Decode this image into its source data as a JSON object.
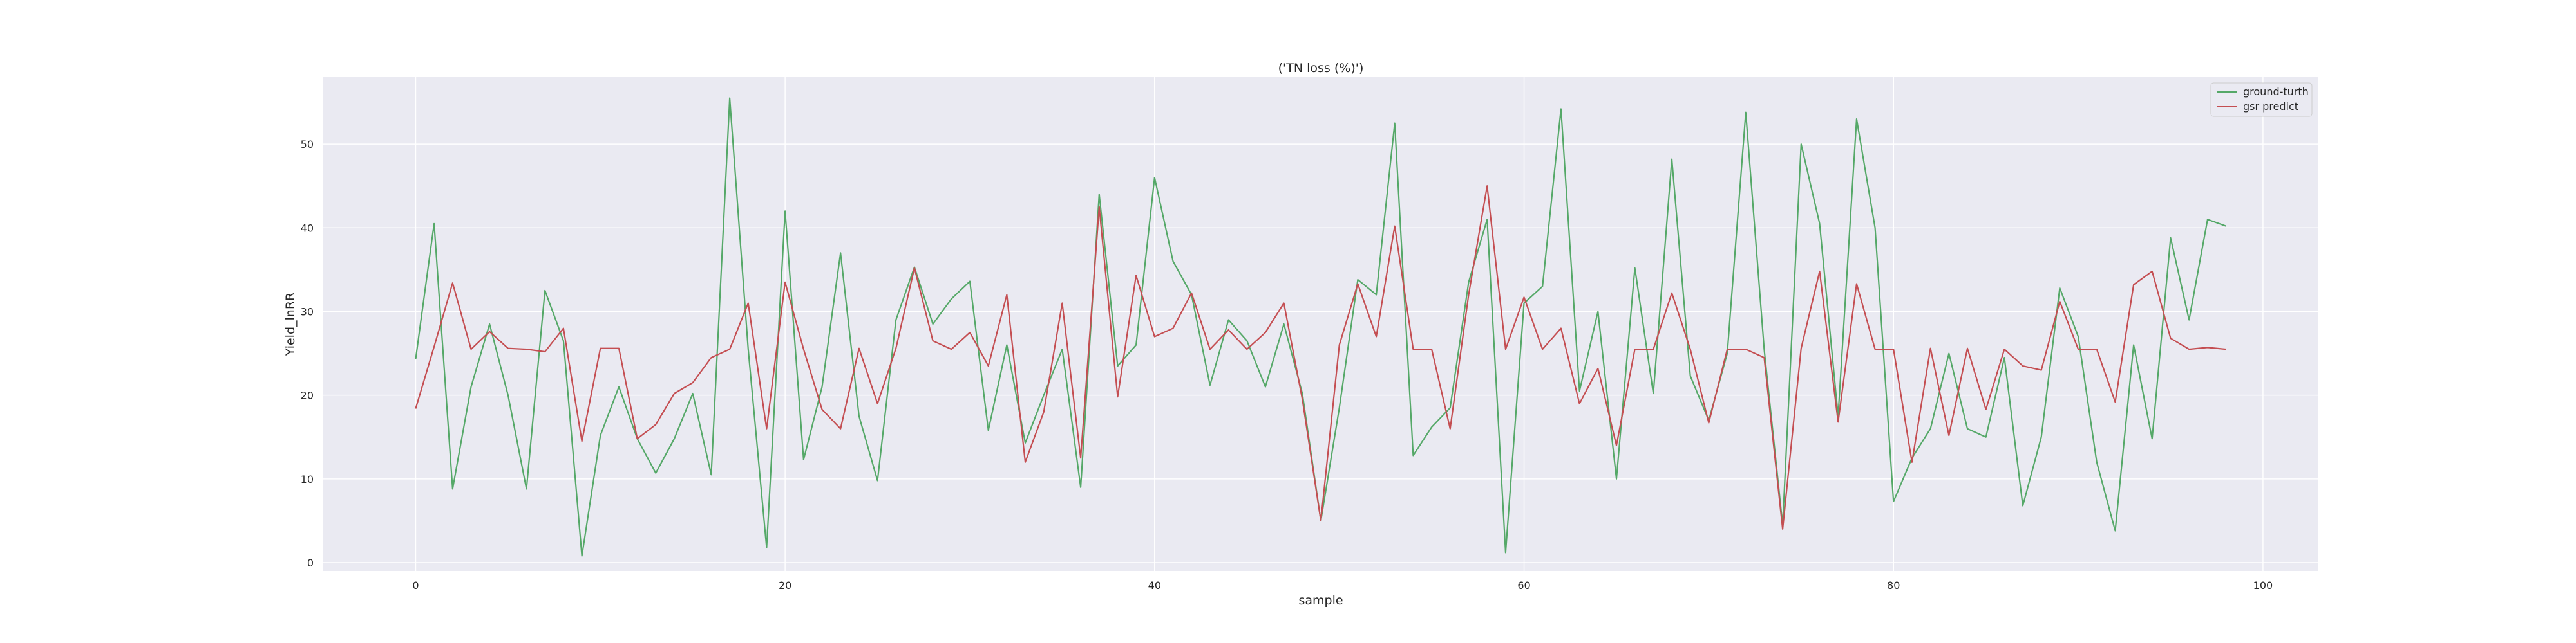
{
  "chart_data": {
    "type": "line",
    "title": "('TN loss (%)')",
    "xlabel": "sample",
    "ylabel": "Yield_lnRR",
    "xlim": [
      -5,
      103
    ],
    "ylim": [
      -1,
      58
    ],
    "x_ticks": [
      0,
      20,
      40,
      60,
      80,
      100
    ],
    "y_ticks": [
      0,
      10,
      20,
      30,
      40,
      50
    ],
    "grid": true,
    "legend_position": "top-right",
    "x": [
      0,
      1,
      2,
      3,
      4,
      5,
      6,
      7,
      8,
      9,
      10,
      11,
      12,
      13,
      14,
      15,
      16,
      17,
      18,
      19,
      20,
      21,
      22,
      23,
      24,
      25,
      26,
      27,
      28,
      29,
      30,
      31,
      32,
      33,
      34,
      35,
      36,
      37,
      38,
      39,
      40,
      41,
      42,
      43,
      44,
      45,
      46,
      47,
      48,
      49,
      50,
      51,
      52,
      53,
      54,
      55,
      56,
      57,
      58,
      59,
      60,
      61,
      62,
      63,
      64,
      65,
      66,
      67,
      68,
      69,
      70,
      71,
      72,
      73,
      74,
      75,
      76,
      77,
      78,
      79,
      80,
      81,
      82,
      83,
      84,
      85,
      86,
      87,
      88,
      89,
      90,
      91,
      92,
      93,
      94,
      95,
      96,
      97,
      98
    ],
    "series": [
      {
        "name": "ground-turth",
        "color": "#55a868",
        "values": [
          24.3,
          40.5,
          8.8,
          21.0,
          28.5,
          20.0,
          8.8,
          32.5,
          26.5,
          0.8,
          15.2,
          21.0,
          14.8,
          10.7,
          14.8,
          20.2,
          10.5,
          55.5,
          25.5,
          1.8,
          42.0,
          12.3,
          21.0,
          37.0,
          17.5,
          9.8,
          29.0,
          35.3,
          28.5,
          31.5,
          33.6,
          15.8,
          26.0,
          14.3,
          20.0,
          25.5,
          9.0,
          44.0,
          23.5,
          26.0,
          46.0,
          36.0,
          32.0,
          21.2,
          29.0,
          26.5,
          21.0,
          28.5,
          20.2,
          5.0,
          18.5,
          33.8,
          32.0,
          52.5,
          12.8,
          16.2,
          18.5,
          33.5,
          41.0,
          1.2,
          31.0,
          33.0,
          54.2,
          20.5,
          30.0,
          10.0,
          35.2,
          20.2,
          48.2,
          22.3,
          17.0,
          25.0,
          53.8,
          25.5,
          4.5,
          50.0,
          40.5,
          17.5,
          53.0,
          40.0,
          7.3,
          12.5,
          16.0,
          25.0,
          16.0,
          15.0,
          24.5,
          6.8,
          15.0,
          32.8,
          27.0,
          12.0,
          3.8,
          26.0,
          14.8,
          38.8,
          29.0,
          41.0,
          40.2
        ]
      },
      {
        "name": "gsr predict",
        "color": "#c44e52",
        "values": [
          18.4,
          25.8,
          33.4,
          25.5,
          27.6,
          25.6,
          25.5,
          25.2,
          28.0,
          14.5,
          25.6,
          25.6,
          14.8,
          16.5,
          20.2,
          21.5,
          24.5,
          25.5,
          31.0,
          16.0,
          33.5,
          25.5,
          18.3,
          16.0,
          25.6,
          19.0,
          25.6,
          35.2,
          26.5,
          25.5,
          27.5,
          23.5,
          32.0,
          12.0,
          18.0,
          31.0,
          12.5,
          42.5,
          19.8,
          34.3,
          27.0,
          28.0,
          32.2,
          25.5,
          27.8,
          25.5,
          27.5,
          31.0,
          19.5,
          5.0,
          26.0,
          33.3,
          27.0,
          40.2,
          25.5,
          25.5,
          16.0,
          32.0,
          45.0,
          25.5,
          31.7,
          25.5,
          28.0,
          19.0,
          23.2,
          14.0,
          25.5,
          25.5,
          32.2,
          25.5,
          16.7,
          25.5,
          25.5,
          24.5,
          4.0,
          25.6,
          34.8,
          16.8,
          33.3,
          25.5,
          25.5,
          12.0,
          25.6,
          15.2,
          25.6,
          18.3,
          25.5,
          23.5,
          23.0,
          31.2,
          25.5,
          25.5,
          19.2,
          33.2,
          34.8,
          26.8,
          25.5,
          25.7,
          25.5
        ]
      }
    ]
  }
}
